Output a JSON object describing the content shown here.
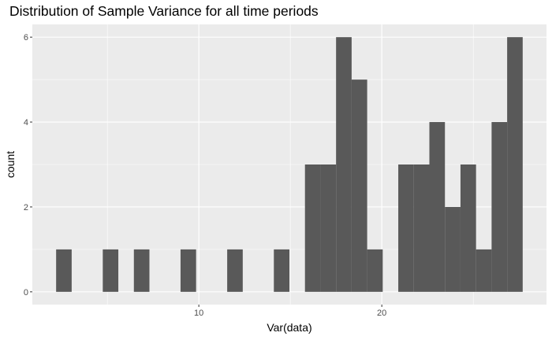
{
  "chart_data": {
    "type": "bar",
    "title": "Distribution of Sample Variance for all time periods",
    "xlabel": "Var(data)",
    "ylabel": "count",
    "bin_width": 0.85,
    "bins": [
      {
        "start": 2.2,
        "count": 1
      },
      {
        "start": 4.75,
        "count": 1
      },
      {
        "start": 6.45,
        "count": 1
      },
      {
        "start": 9.0,
        "count": 1
      },
      {
        "start": 11.55,
        "count": 1
      },
      {
        "start": 14.1,
        "count": 1
      },
      {
        "start": 15.8,
        "count": 3
      },
      {
        "start": 16.65,
        "count": 3
      },
      {
        "start": 17.5,
        "count": 6
      },
      {
        "start": 18.35,
        "count": 5
      },
      {
        "start": 19.2,
        "count": 1
      },
      {
        "start": 20.9,
        "count": 3
      },
      {
        "start": 21.75,
        "count": 3
      },
      {
        "start": 22.6,
        "count": 4
      },
      {
        "start": 23.45,
        "count": 2
      },
      {
        "start": 24.3,
        "count": 3
      },
      {
        "start": 25.15,
        "count": 1
      },
      {
        "start": 26.0,
        "count": 4
      },
      {
        "start": 26.85,
        "count": 6
      }
    ],
    "xlim": [
      0.9,
      29.0
    ],
    "ylim": [
      -0.3,
      6.3
    ],
    "x_ticks": [
      10,
      20
    ],
    "y_ticks": [
      0,
      2,
      4,
      6
    ],
    "bar_color": "#595959",
    "panel_color": "#EBEBEB",
    "grid_color": "#FFFFFF",
    "grid": true
  }
}
